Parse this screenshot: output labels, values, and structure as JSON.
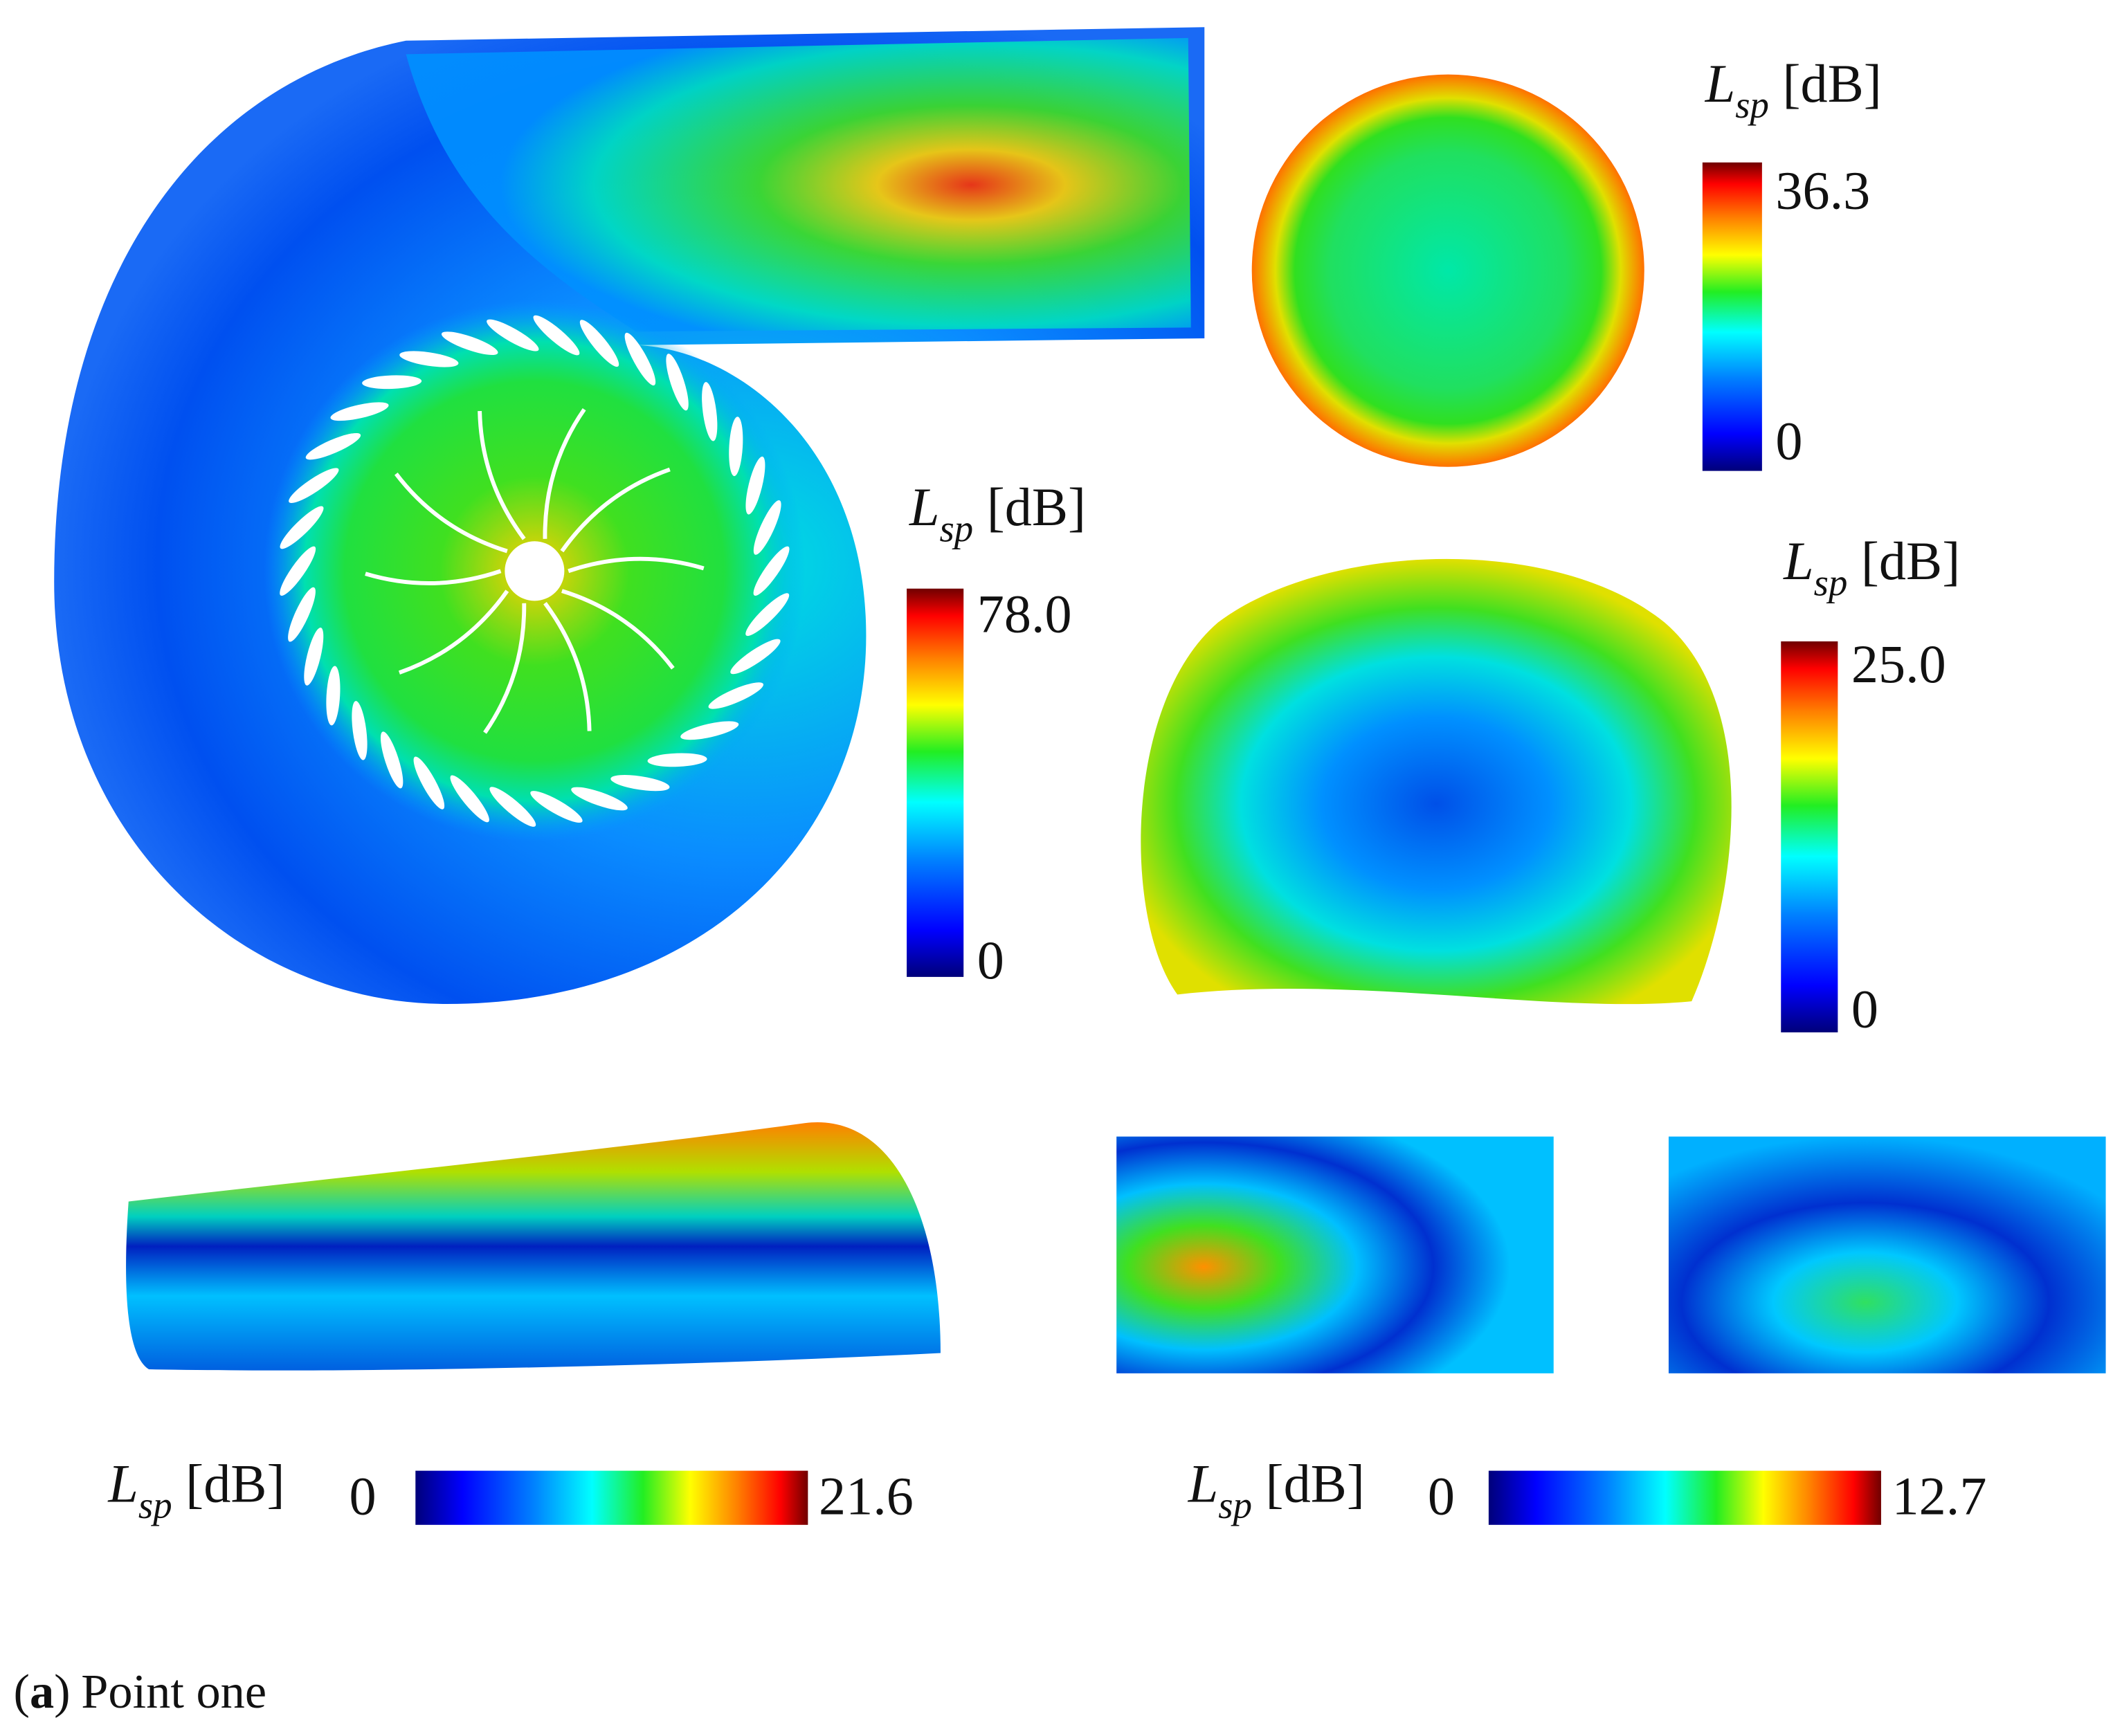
{
  "colorbars": [
    {
      "symbol": "L",
      "subscript": "sp",
      "unit": "[dB]",
      "min": "0",
      "max": "36.3"
    },
    {
      "symbol": "L",
      "subscript": "sp",
      "unit": "[dB]",
      "min": "0",
      "max": "78.0"
    },
    {
      "symbol": "L",
      "subscript": "sp",
      "unit": "[dB]",
      "min": "0",
      "max": "25.0"
    },
    {
      "symbol": "L",
      "subscript": "sp",
      "unit": "[dB]",
      "min": "0",
      "max": "21.6"
    },
    {
      "symbol": "L",
      "subscript": "sp",
      "unit": "[dB]",
      "min": "0",
      "max": "12.7"
    }
  ],
  "caption": {
    "open": "(",
    "label": "a",
    "close": ")",
    "text": "Point one"
  }
}
